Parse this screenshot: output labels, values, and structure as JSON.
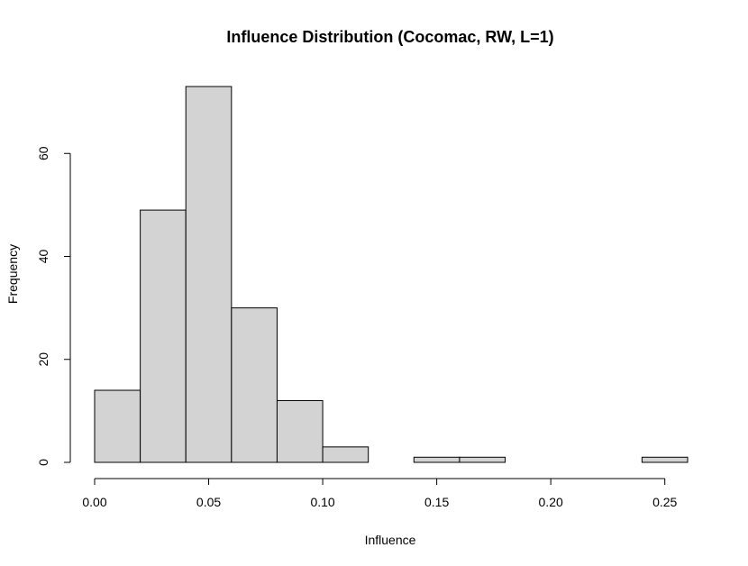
{
  "chart_data": {
    "type": "bar",
    "title": "Influence Distribution (Cocomac, RW, L=1)",
    "xlabel": "Influence",
    "ylabel": "Frequency",
    "bin_edges": [
      0.0,
      0.02,
      0.04,
      0.06,
      0.08,
      0.1,
      0.12,
      0.14,
      0.16,
      0.18,
      0.2,
      0.22,
      0.24,
      0.26
    ],
    "values": [
      14,
      49,
      73,
      30,
      12,
      3,
      0,
      1,
      1,
      0,
      0,
      0,
      1
    ],
    "xlim": [
      0.0,
      0.26
    ],
    "ylim": [
      0,
      73
    ],
    "x_ticks": [
      0.0,
      0.05,
      0.1,
      0.15,
      0.2,
      0.25
    ],
    "x_tick_labels": [
      "0.00",
      "0.05",
      "0.10",
      "0.15",
      "0.20",
      "0.25"
    ],
    "y_ticks": [
      0,
      20,
      40,
      60
    ],
    "y_tick_labels": [
      "0",
      "20",
      "40",
      "60"
    ],
    "grid": false,
    "bar_color": "#d3d3d3",
    "edge_color": "#000000"
  }
}
